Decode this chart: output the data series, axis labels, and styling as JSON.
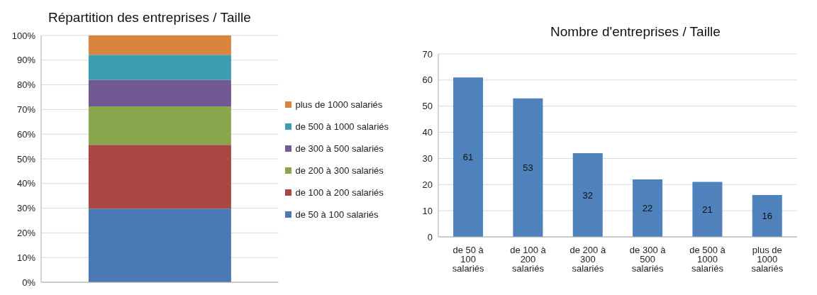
{
  "chart_data": [
    {
      "type": "bar",
      "title": "Répartition des entreprises / Taille",
      "categories": [
        null
      ],
      "stacked": true,
      "legend": "right",
      "grid": "y",
      "ylim": [
        0,
        100
      ],
      "yticks": [
        {
          "value": 0,
          "label": "0%"
        },
        {
          "value": 10,
          "label": "10%"
        },
        {
          "value": 20,
          "label": "20%"
        },
        {
          "value": 30,
          "label": "30%"
        },
        {
          "value": 40,
          "label": "40%"
        },
        {
          "value": 50,
          "label": "50%"
        },
        {
          "value": 60,
          "label": "60%"
        },
        {
          "value": 70,
          "label": "70%"
        },
        {
          "value": 80,
          "label": "80%"
        },
        {
          "value": 90,
          "label": "90%"
        },
        {
          "value": 100,
          "label": "100%"
        }
      ],
      "series": [
        {
          "name": "de 50 à 100 salariés",
          "color": "#4a7ab5",
          "values": [
            29.8
          ]
        },
        {
          "name": "de 100 à 200 salariés",
          "color": "#a94744",
          "values": [
            25.9
          ]
        },
        {
          "name": "de 200 à 300 salariés",
          "color": "#8aa64d",
          "values": [
            15.6
          ]
        },
        {
          "name": "de 300 à 500 salariés",
          "color": "#715a93",
          "values": [
            10.7
          ]
        },
        {
          "name": "de 500 à 1000 salariés",
          "color": "#3d9bb2",
          "values": [
            10.2
          ]
        },
        {
          "name": "plus de 1000 salariés",
          "color": "#db843d",
          "values": [
            7.8
          ]
        }
      ]
    },
    {
      "type": "bar",
      "title": "Nombre d'entreprises / Taille",
      "categories": [
        "de 50 à 100 salariés",
        "de 100 à 200 salariés",
        "de 200 à 300 salariés",
        "de 300 à 500 salariés",
        "de 500 à 1000 salariés",
        "plus de 1000 salariés"
      ],
      "values": [
        61,
        53,
        32,
        22,
        21,
        16
      ],
      "color": "#4f81bd",
      "data_labels": true,
      "grid": "y",
      "ylim": [
        0,
        70
      ],
      "yticks": [
        0,
        10,
        20,
        30,
        40,
        50,
        60,
        70
      ]
    }
  ]
}
